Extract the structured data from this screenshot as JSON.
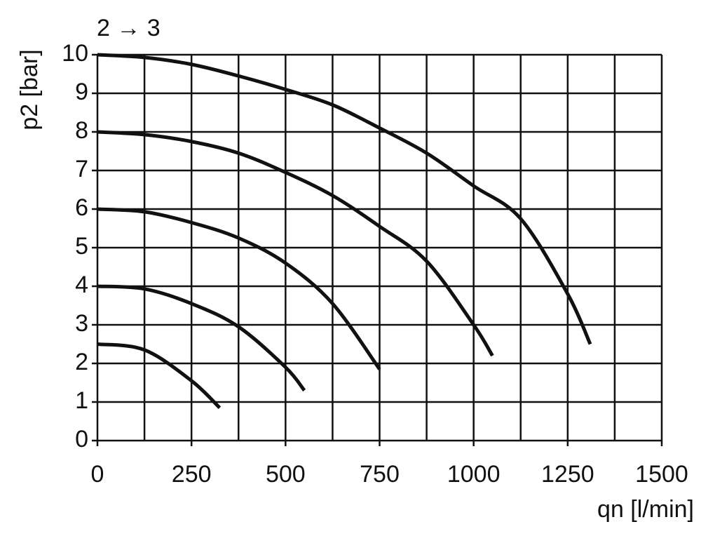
{
  "chart_data": {
    "type": "line",
    "title": "2 → 3",
    "x_label": "qn [l/min]",
    "y_label": "p2 [bar]",
    "xlim": [
      0,
      1500
    ],
    "xticks": [
      0,
      250,
      500,
      750,
      1000,
      1250,
      1500
    ],
    "ylim": [
      0,
      10
    ],
    "yticks": [
      0,
      1,
      2,
      3,
      4,
      5,
      6,
      7,
      8,
      9,
      10
    ],
    "grid": true,
    "minor_x_grid": true,
    "series": [
      {
        "color": "#111111",
        "x": [
          0,
          125,
          250,
          375,
          500,
          625,
          750,
          875,
          1000,
          1125,
          1250,
          1310
        ],
        "values": [
          10,
          9.93,
          9.75,
          9.45,
          9.1,
          8.7,
          8.1,
          7.45,
          6.6,
          5.75,
          3.8,
          2.5
        ]
      },
      {
        "color": "#111111",
        "x": [
          0,
          125,
          250,
          375,
          500,
          625,
          750,
          875,
          1000,
          1050
        ],
        "values": [
          8,
          7.93,
          7.75,
          7.45,
          6.95,
          6.35,
          5.55,
          4.65,
          3.0,
          2.2
        ]
      },
      {
        "color": "#111111",
        "x": [
          0,
          125,
          250,
          375,
          500,
          625,
          750
        ],
        "values": [
          6,
          5.93,
          5.65,
          5.25,
          4.6,
          3.55,
          1.85
        ]
      },
      {
        "color": "#111111",
        "x": [
          0,
          125,
          250,
          375,
          500,
          550
        ],
        "values": [
          4,
          3.93,
          3.55,
          2.95,
          1.9,
          1.3
        ]
      },
      {
        "color": "#111111",
        "x": [
          0,
          125,
          250,
          325
        ],
        "values": [
          2.5,
          2.35,
          1.55,
          0.85
        ]
      }
    ]
  }
}
